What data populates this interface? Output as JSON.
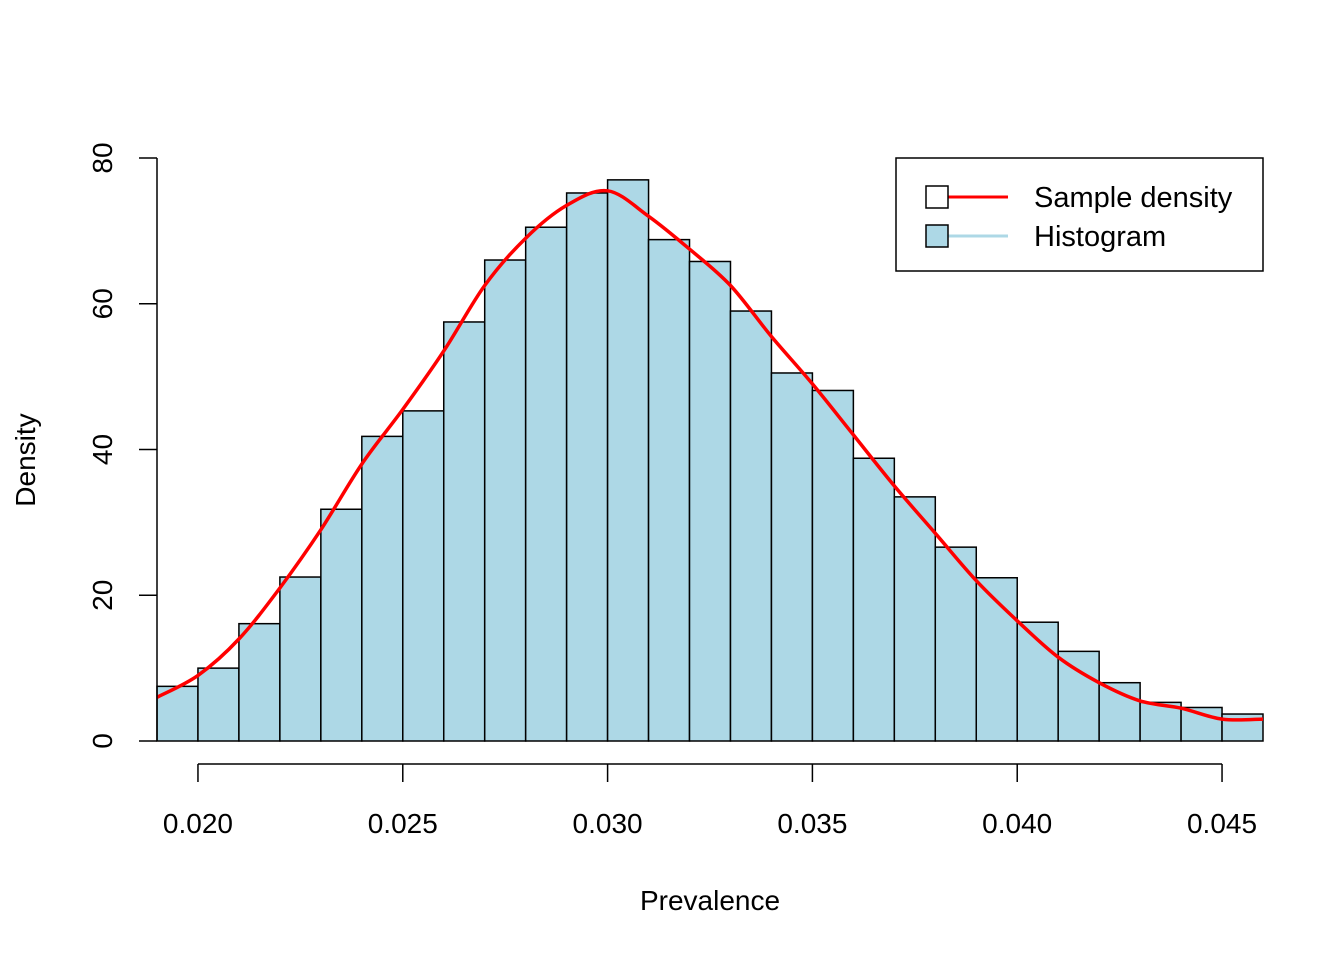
{
  "chart_data": {
    "type": "histogram",
    "title": "",
    "xlabel": "Prevalence",
    "ylabel": "Density",
    "xlim": [
      0.019,
      0.046
    ],
    "ylim": [
      0,
      80
    ],
    "x_ticks": [
      0.02,
      0.025,
      0.03,
      0.035,
      0.04,
      0.045
    ],
    "x_tick_labels": [
      "0.020",
      "0.025",
      "0.030",
      "0.035",
      "0.040",
      "0.045"
    ],
    "y_ticks": [
      0,
      20,
      40,
      60,
      80
    ],
    "y_tick_labels": [
      "0",
      "20",
      "40",
      "60",
      "80"
    ],
    "histogram": {
      "name": "Histogram",
      "fill": "#add8e6",
      "border": "#000000",
      "bin_edges": [
        0.019,
        0.02,
        0.021,
        0.022,
        0.023,
        0.024,
        0.025,
        0.026,
        0.027,
        0.028,
        0.029,
        0.03,
        0.031,
        0.032,
        0.033,
        0.034,
        0.035,
        0.036,
        0.037,
        0.038,
        0.039,
        0.04,
        0.041,
        0.042,
        0.043,
        0.044,
        0.045,
        0.046
      ],
      "densities": [
        7.5,
        10.0,
        16.1,
        22.5,
        31.8,
        41.8,
        45.3,
        57.5,
        66.0,
        70.5,
        75.2,
        77.0,
        68.8,
        65.8,
        59.0,
        50.5,
        48.1,
        38.8,
        33.5,
        26.6,
        22.4,
        16.3,
        12.3,
        8.0,
        5.3,
        4.6,
        3.7
      ]
    },
    "density_curve": {
      "name": "Sample density",
      "color": "#ff0000",
      "x": [
        0.019,
        0.02,
        0.021,
        0.022,
        0.023,
        0.024,
        0.025,
        0.026,
        0.027,
        0.028,
        0.029,
        0.03,
        0.031,
        0.032,
        0.033,
        0.034,
        0.035,
        0.036,
        0.037,
        0.038,
        0.039,
        0.04,
        0.041,
        0.042,
        0.043,
        0.044,
        0.045,
        0.046
      ],
      "y": [
        6.0,
        9.0,
        14.0,
        21.0,
        29.0,
        38.0,
        45.5,
        53.5,
        62.5,
        69.0,
        73.5,
        75.5,
        72.0,
        67.5,
        62.5,
        55.5,
        49.0,
        42.0,
        35.0,
        28.5,
        22.0,
        16.5,
        11.5,
        8.0,
        5.5,
        4.5,
        3.0,
        3.0
      ]
    },
    "legend": {
      "position": "top-right",
      "entries": [
        {
          "label": "Sample density",
          "line_color": "#ff0000",
          "box_fill": "#ffffff"
        },
        {
          "label": "Histogram",
          "line_color": "#add8e6",
          "box_fill": "#add8e6"
        }
      ]
    }
  }
}
